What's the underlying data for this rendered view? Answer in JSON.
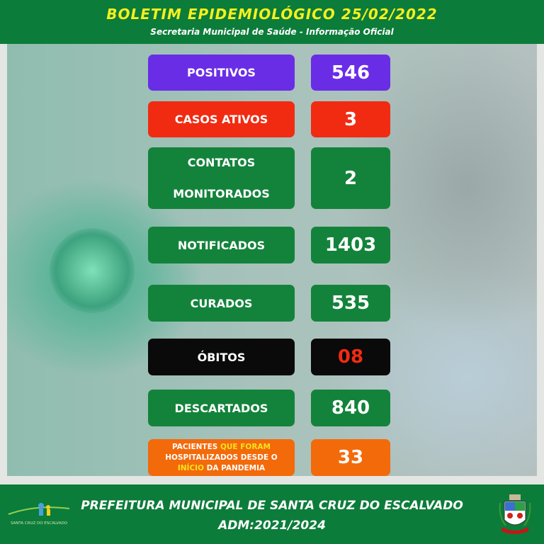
{
  "header": {
    "title": "BOLETIM  EPIDEMIOLÓGICO  25/02/2022",
    "subtitle": "Secretaria Municipal de Saúde - Informação Oficial"
  },
  "rows": [
    {
      "label": "POSITIVOS",
      "value": "546",
      "color": "#6a2de6"
    },
    {
      "label": "CASOS ATIVOS",
      "value": "3",
      "color": "#f12b12"
    },
    {
      "label_line1": "CONTATOS",
      "label_line2": "MONITORADOS",
      "value": "2",
      "color": "#13833b"
    },
    {
      "label": "NOTIFICADOS",
      "value": "1403",
      "color": "#13833b"
    },
    {
      "label": "CURADOS",
      "value": "535",
      "color": "#13833b"
    },
    {
      "label": "ÓBITOS",
      "value": "08",
      "color": "#0a0a0a",
      "value_color": "#f12b12"
    },
    {
      "label": "DESCARTADOS",
      "value": "840",
      "color": "#13833b"
    },
    {
      "label_parts": [
        "PACIENTES ",
        "QUE FORAM",
        "HOSPITALIZADOS DESDE O",
        "INÍCIO",
        " DA PANDEMIA"
      ],
      "value": "33",
      "color": "#f36a0b"
    }
  ],
  "footer": {
    "line1": "PREFEITURA MUNICIPAL DE SANTA CRUZ DO ESCALVADO",
    "line2": "ADM:2021/2024",
    "logo_text": "SANTA CRUZ DO ESCALVADO"
  }
}
